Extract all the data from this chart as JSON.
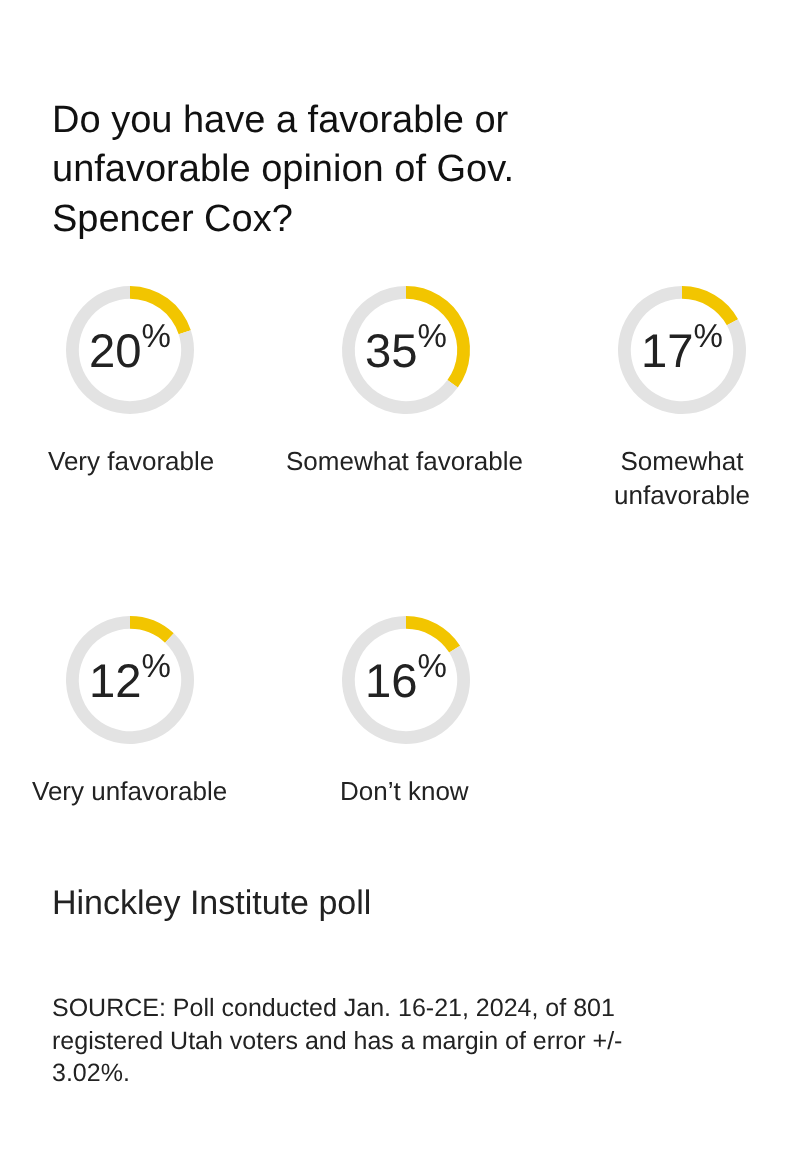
{
  "chart_data": [
    {
      "type": "other",
      "title": "Do you have a favorable or unfavorable opinion of Gov. Spencer Cox?"
    },
    {
      "type": "donut",
      "title": "Very favorable",
      "categories": [
        null,
        null
      ],
      "values": [
        20,
        80
      ],
      "colors": [
        "#f2c500",
        "#e3e3e3"
      ],
      "value_labels": [
        "20$^{%}$",
        null
      ]
    },
    {
      "type": "donut",
      "title": "Somewhat favorable",
      "categories": [
        null,
        null
      ],
      "values": [
        35,
        65
      ],
      "colors": [
        "#f2c500",
        "#e3e3e3"
      ],
      "value_labels": [
        "35$^{%}$",
        null
      ]
    },
    {
      "type": "donut",
      "title": "Somewhat unfavorable",
      "categories": [
        null,
        null
      ],
      "values": [
        17,
        83
      ],
      "colors": [
        "#f2c500",
        "#e3e3e3"
      ],
      "value_labels": [
        "17$^{%}$",
        null
      ]
    },
    {
      "type": "donut",
      "title": "Very unfavorable",
      "categories": [
        null,
        null
      ],
      "values": [
        12,
        88
      ],
      "colors": [
        "#f2c500",
        "#e3e3e3"
      ],
      "value_labels": [
        "12$^{%}$",
        null
      ]
    },
    {
      "type": "donut",
      "title": "Don’t know",
      "categories": [
        null,
        null
      ],
      "values": [
        16,
        84
      ],
      "colors": [
        "#f2c500",
        "#e3e3e3"
      ],
      "value_labels": [
        "16$^{%}$",
        null
      ]
    },
    {
      "type": "other",
      "annotations": [
        "Hinckley Institute poll",
        "SOURCE: Poll conducted Jan. 16-21, 2024, of 801 registered Utah voters and has a margin of error +/- 3.02%."
      ]
    }
  ]
}
